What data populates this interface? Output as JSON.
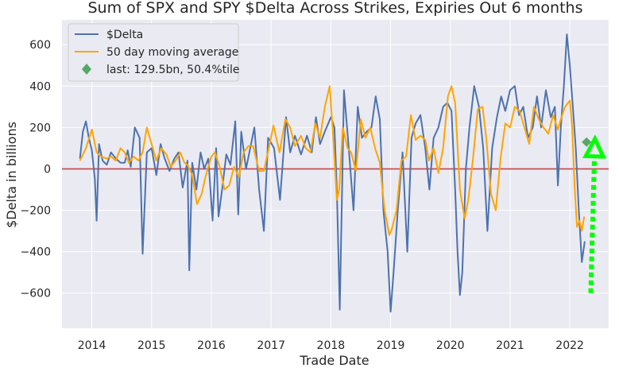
{
  "chart_data": {
    "type": "line",
    "title": "Sum of SPX and SPY $Delta Across Strikes, Expiries Out 6 months",
    "xlabel": "Trade Date",
    "ylabel": "$Delta in billions",
    "xlim": [
      2013.5,
      2022.65
    ],
    "ylim": [
      -770,
      720
    ],
    "x_ticks": [
      2014,
      2015,
      2016,
      2017,
      2018,
      2019,
      2020,
      2021,
      2022
    ],
    "x_tick_labels": [
      "2014",
      "2015",
      "2016",
      "2017",
      "2018",
      "2019",
      "2020",
      "2021",
      "2022"
    ],
    "y_ticks": [
      -600,
      -400,
      -200,
      0,
      200,
      400,
      600
    ],
    "y_tick_labels": [
      "−600",
      "−400",
      "−200",
      "0",
      "200",
      "400",
      "600"
    ],
    "grid": true,
    "legend_position": "top-left",
    "zero_line": {
      "y": 0,
      "color": "#c44e52"
    },
    "series": [
      {
        "name": "$Delta",
        "color": "#4c72b0",
        "x": [
          2013.8,
          2013.85,
          2013.9,
          2013.95,
          2014.0,
          2014.05,
          2014.08,
          2014.12,
          2014.18,
          2014.25,
          2014.32,
          2014.4,
          2014.48,
          2014.55,
          2014.6,
          2014.65,
          2014.72,
          2014.8,
          2014.85,
          2014.92,
          2015.0,
          2015.08,
          2015.15,
          2015.22,
          2015.3,
          2015.38,
          2015.45,
          2015.52,
          2015.6,
          2015.63,
          2015.68,
          2015.75,
          2015.82,
          2015.88,
          2015.95,
          2016.02,
          2016.08,
          2016.12,
          2016.18,
          2016.25,
          2016.32,
          2016.4,
          2016.45,
          2016.5,
          2016.58,
          2016.65,
          2016.72,
          2016.8,
          2016.88,
          2016.95,
          2017.05,
          2017.15,
          2017.25,
          2017.32,
          2017.4,
          2017.5,
          2017.6,
          2017.68,
          2017.75,
          2017.82,
          2017.9,
          2018.0,
          2018.06,
          2018.1,
          2018.15,
          2018.22,
          2018.3,
          2018.38,
          2018.45,
          2018.52,
          2018.6,
          2018.68,
          2018.75,
          2018.82,
          2018.88,
          2018.95,
          2019.0,
          2019.05,
          2019.12,
          2019.2,
          2019.28,
          2019.35,
          2019.42,
          2019.5,
          2019.58,
          2019.65,
          2019.72,
          2019.8,
          2019.88,
          2019.95,
          2020.02,
          2020.08,
          2020.12,
          2020.16,
          2020.2,
          2020.26,
          2020.32,
          2020.4,
          2020.48,
          2020.55,
          2020.62,
          2020.7,
          2020.78,
          2020.85,
          2020.92,
          2021.0,
          2021.08,
          2021.15,
          2021.22,
          2021.3,
          2021.38,
          2021.45,
          2021.52,
          2021.6,
          2021.68,
          2021.75,
          2021.8,
          2021.85,
          2021.9,
          2021.95,
          2022.0,
          2022.05,
          2022.1,
          2022.15,
          2022.2,
          2022.25
        ],
        "y": [
          50,
          180,
          230,
          150,
          90,
          -50,
          -250,
          120,
          40,
          20,
          80,
          50,
          30,
          30,
          90,
          10,
          200,
          150,
          -410,
          80,
          100,
          -30,
          120,
          50,
          -10,
          50,
          80,
          -90,
          40,
          -490,
          30,
          -100,
          80,
          0,
          50,
          -250,
          100,
          -230,
          -100,
          70,
          20,
          230,
          -220,
          180,
          0,
          100,
          200,
          -100,
          -300,
          150,
          100,
          -150,
          250,
          80,
          160,
          70,
          160,
          80,
          250,
          120,
          180,
          250,
          200,
          -100,
          -680,
          380,
          100,
          -200,
          300,
          150,
          180,
          200,
          350,
          240,
          -200,
          -400,
          -690,
          -500,
          -200,
          80,
          -400,
          150,
          220,
          260,
          100,
          -100,
          150,
          200,
          300,
          320,
          280,
          -100,
          -400,
          -610,
          -500,
          0,
          200,
          400,
          300,
          100,
          -300,
          100,
          250,
          350,
          280,
          380,
          400,
          260,
          300,
          150,
          200,
          350,
          200,
          380,
          250,
          300,
          -80,
          200,
          400,
          650,
          500,
          300,
          100,
          -200,
          -450,
          -350
        ]
      },
      {
        "name": "50 day moving average",
        "color": "#ffa500",
        "x": [
          2013.8,
          2013.9,
          2014.0,
          2014.08,
          2014.15,
          2014.25,
          2014.32,
          2014.4,
          2014.48,
          2014.55,
          2014.62,
          2014.7,
          2014.78,
          2014.85,
          2014.92,
          2015.0,
          2015.08,
          2015.16,
          2015.25,
          2015.32,
          2015.4,
          2015.48,
          2015.55,
          2015.6,
          2015.68,
          2015.76,
          2015.84,
          2015.9,
          2016.0,
          2016.06,
          2016.14,
          2016.22,
          2016.3,
          2016.38,
          2016.46,
          2016.54,
          2016.62,
          2016.7,
          2016.8,
          2016.88,
          2016.96,
          2017.04,
          2017.14,
          2017.24,
          2017.32,
          2017.4,
          2017.5,
          2017.58,
          2017.66,
          2017.74,
          2017.82,
          2017.9,
          2017.98,
          2018.04,
          2018.1,
          2018.14,
          2018.2,
          2018.28,
          2018.34,
          2018.42,
          2018.5,
          2018.58,
          2018.66,
          2018.74,
          2018.82,
          2018.9,
          2018.98,
          2019.02,
          2019.1,
          2019.18,
          2019.26,
          2019.34,
          2019.42,
          2019.5,
          2019.58,
          2019.64,
          2019.72,
          2019.8,
          2019.88,
          2019.96,
          2020.02,
          2020.08,
          2020.16,
          2020.24,
          2020.3,
          2020.38,
          2020.46,
          2020.54,
          2020.6,
          2020.68,
          2020.76,
          2020.84,
          2020.92,
          2021.0,
          2021.08,
          2021.16,
          2021.24,
          2021.32,
          2021.4,
          2021.48,
          2021.56,
          2021.64,
          2021.72,
          2021.8,
          2021.86,
          2021.92,
          2022.0,
          2022.04,
          2022.08,
          2022.12,
          2022.16,
          2022.2,
          2022.24
        ],
        "y": [
          40,
          100,
          190,
          80,
          60,
          50,
          60,
          40,
          100,
          80,
          30,
          60,
          40,
          80,
          200,
          120,
          40,
          100,
          70,
          10,
          40,
          80,
          30,
          20,
          -30,
          -170,
          -120,
          -40,
          60,
          80,
          10,
          -100,
          -80,
          10,
          -40,
          80,
          110,
          110,
          -10,
          -10,
          100,
          210,
          80,
          240,
          200,
          110,
          160,
          100,
          80,
          220,
          150,
          300,
          400,
          150,
          -150,
          -100,
          200,
          100,
          80,
          -10,
          240,
          150,
          200,
          100,
          30,
          -200,
          -320,
          -290,
          -200,
          40,
          60,
          260,
          140,
          160,
          140,
          40,
          100,
          -20,
          100,
          350,
          400,
          320,
          -100,
          -240,
          -150,
          50,
          290,
          300,
          150,
          -120,
          -200,
          50,
          220,
          200,
          300,
          280,
          200,
          120,
          300,
          240,
          200,
          170,
          260,
          190,
          250,
          300,
          330,
          200,
          -80,
          -280,
          -250,
          -300,
          -230
        ]
      }
    ],
    "last_point": {
      "label": "last: 129.5bn, 50.4%tile",
      "x": 2022.28,
      "y": 129.5,
      "color": "#55a868"
    },
    "annotations": [
      {
        "type": "arrow",
        "style": "dotted",
        "color": "#00ff00",
        "x_start": 2022.35,
        "y_start": -600,
        "x_end": 2022.42,
        "y_end": 145
      }
    ]
  }
}
